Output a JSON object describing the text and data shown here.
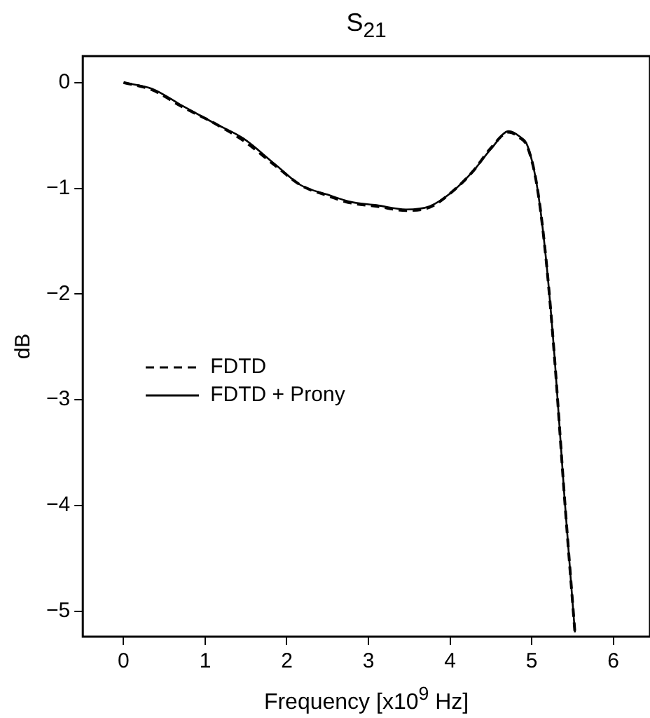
{
  "chart_data": {
    "type": "line",
    "title": "S$_{21}$",
    "xlabel": "Frequency [x10$^{9}$ Hz]",
    "ylabel": "dB",
    "xlim": [
      -0.5,
      6.45
    ],
    "xticks": [
      0,
      1,
      2,
      3,
      4,
      5,
      6
    ],
    "ylim": [
      -5.24,
      0.25
    ],
    "yticks": [
      0,
      -1,
      -2,
      -3,
      -4,
      -5
    ],
    "grid": false,
    "legend": "left",
    "marker": "none",
    "series": [
      {
        "name": "FDTD",
        "color": "#000000",
        "line_style": "dashed",
        "x": [
          0,
          0.35,
          0.72,
          1.1,
          1.47,
          1.85,
          2.17,
          2.5,
          2.79,
          3.1,
          3.46,
          3.75,
          4.0,
          4.28,
          4.5,
          4.72,
          4.85,
          4.95,
          5.07,
          5.18,
          5.28,
          5.4,
          5.53
        ],
        "values": [
          0,
          -0.07,
          -0.23,
          -0.38,
          -0.55,
          -0.78,
          -0.97,
          -1.07,
          -1.14,
          -1.17,
          -1.21,
          -1.18,
          -1.05,
          -0.84,
          -0.62,
          -0.47,
          -0.52,
          -0.61,
          -1.0,
          -1.7,
          -2.6,
          -3.9,
          -5.2
        ]
      },
      {
        "name": "FDTD + Prony",
        "color": "#000000",
        "line_style": "solid",
        "x": [
          0,
          0.35,
          0.72,
          1.1,
          1.47,
          1.85,
          2.17,
          2.5,
          2.79,
          3.1,
          3.46,
          3.75,
          4.0,
          4.28,
          4.5,
          4.72,
          4.85,
          4.95,
          5.07,
          5.18,
          5.28,
          5.4,
          5.53
        ],
        "values": [
          0,
          -0.06,
          -0.22,
          -0.38,
          -0.53,
          -0.77,
          -0.97,
          -1.06,
          -1.13,
          -1.16,
          -1.2,
          -1.17,
          -1.05,
          -0.84,
          -0.63,
          -0.46,
          -0.51,
          -0.6,
          -1.0,
          -1.7,
          -2.59,
          -3.9,
          -5.2
        ]
      }
    ]
  }
}
